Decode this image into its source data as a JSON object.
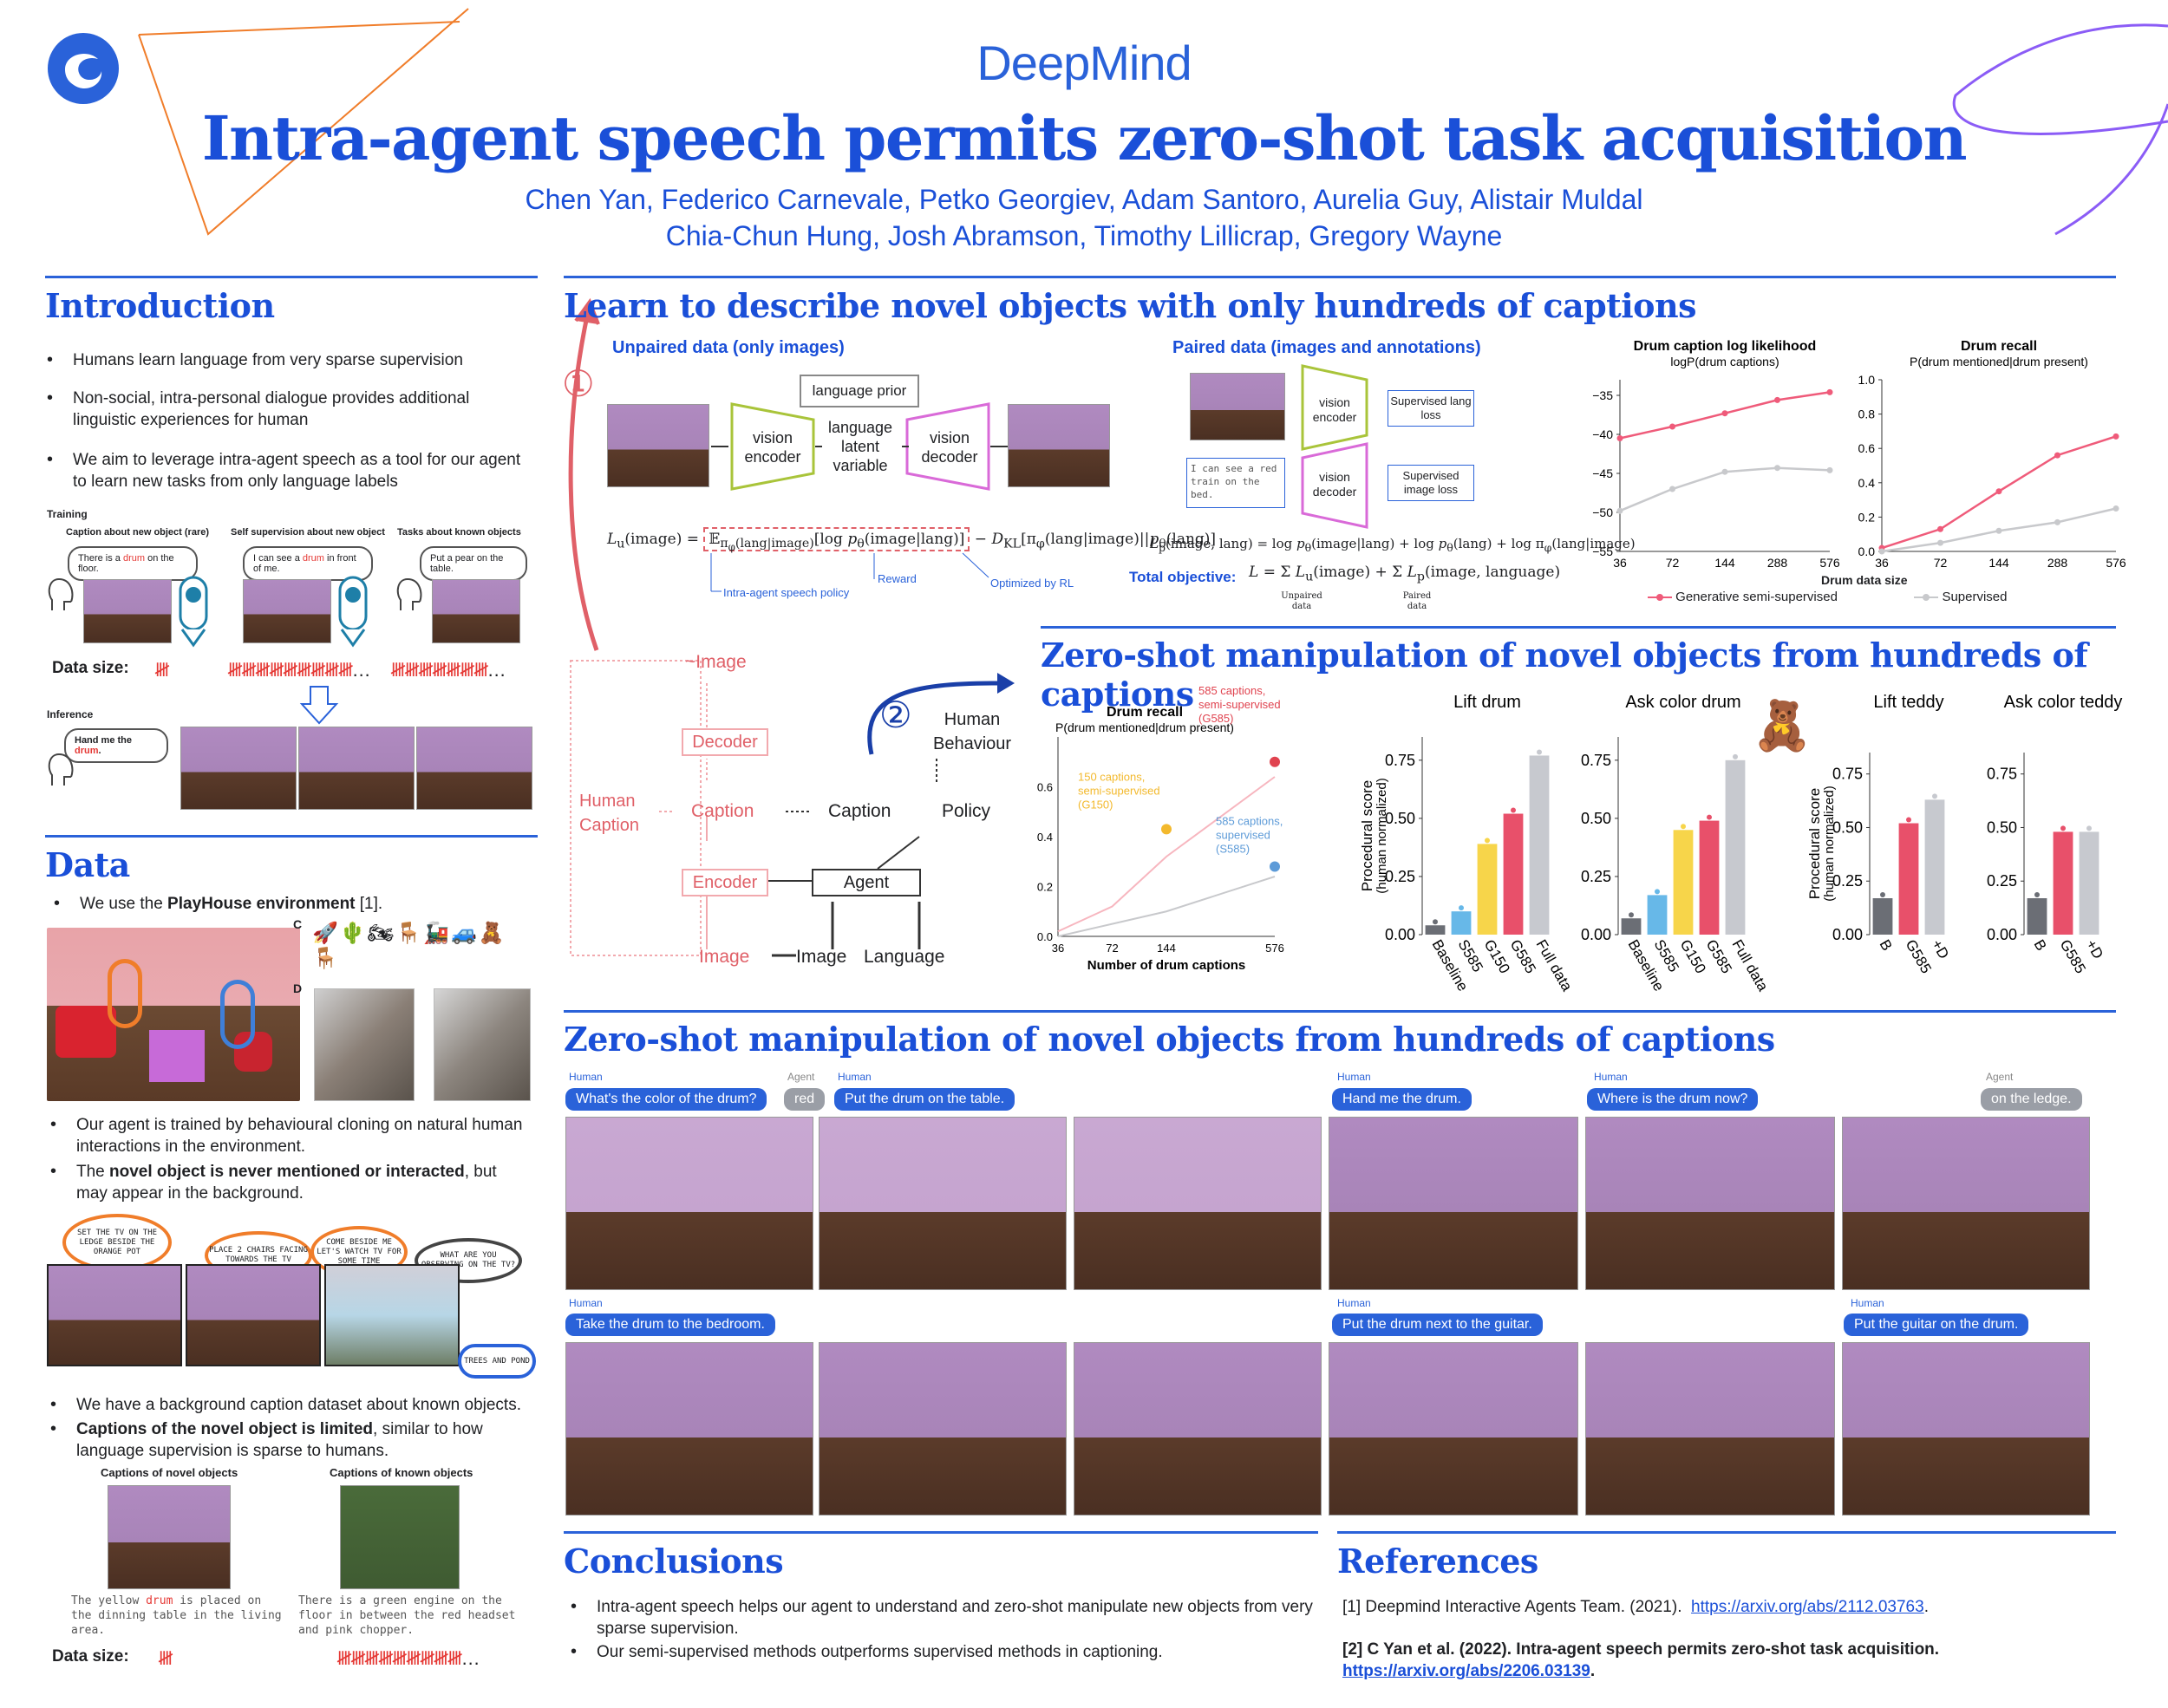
{
  "header": {
    "brand": "DeepMind",
    "title": "Intra-agent speech permits zero-shot task acquisition",
    "authors_line1": "Chen Yan, Federico Carnevale, Petko Georgiev, Adam Santoro, Aurelia Guy, Alistair Muldal",
    "authors_line2": "Chia-Chun Hung, Josh Abramson, Timothy Lillicrap, Gregory Wayne"
  },
  "intro": {
    "title": "Introduction",
    "bullets": [
      "Humans learn language from very sparse supervision",
      "Non-social, intra-personal dialogue provides additional linguistic experiences for human",
      "We aim to leverage intra-agent speech as a tool for our agent to learn new tasks from only language labels"
    ],
    "training_label": "Training",
    "col1_title": "Caption about new object (rare)",
    "col2_title": "Self supervision about new object",
    "col3_title": "Tasks about known objects",
    "bubble1_a": "There is a ",
    "bubble1_b": "drum",
    "bubble1_c": " on the floor.",
    "bubble2_a": "I can see a ",
    "bubble2_b": "drum",
    "bubble2_c": " in front of me.",
    "bubble3": "Put a pear on the table.",
    "data_size_label": "Data size:",
    "inference_label": "Inference",
    "inference_a": "Hand me the ",
    "inference_b": "drum",
    "inference_c": "."
  },
  "data_section": {
    "title": "Data",
    "bullet1_a": "We use the ",
    "bullet1_b": "PlayHouse environment",
    "bullet1_c": " [1].",
    "label_c": "C",
    "label_d": "D",
    "bullet2": "Our agent is trained by behavioural cloning on natural human interactions in the environment.",
    "bullet3_a": "The ",
    "bullet3_b": "novel object is never mentioned or interacted",
    "bullet3_c": ", but may appear in the background.",
    "speech1": "SET THE TV ON THE LEDGE BESIDE THE ORANGE POT",
    "speech2": "PLACE 2 CHAIRS FACING TOWARDS THE TV",
    "speech3": "COME BESIDE ME LET'S WATCH TV FOR SOME TIME",
    "speech4": "WHAT ARE YOU OBSERVING ON THE TV?",
    "speech5": "TREES AND POND",
    "bullet4": "We have a background caption dataset about known objects.",
    "bullet5_a": "Captions of the novel object is limited",
    "bullet5_b": ", similar to how language supervision is sparse to humans.",
    "cap_novel_title": "Captions of novel objects",
    "cap_known_title": "Captions of known objects",
    "cap_novel_a": "The yellow ",
    "cap_novel_b": "drum",
    "cap_novel_c": " is placed on the dinning table in the living area.",
    "cap_known": "There is a green engine on the floor in between the red headset and pink chopper.",
    "data_size_label": "Data size:"
  },
  "learn": {
    "title": "Learn to describe novel objects with only hundreds of captions",
    "unpaired_title": "Unpaired data (only images)",
    "paired_title": "Paired data (images and annotations)",
    "language_prior": "language prior",
    "vision_encoder": "vision encoder",
    "latent": "language latent variable",
    "vision_decoder": "vision decoder",
    "supervised_lang_loss": "Supervised lang loss",
    "supervised_image_loss": "Supervised image loss",
    "paired_caption": "I can see a red train on the bed.",
    "eq_lu": "Lu(image) = E π(lang|image) [log pθ(image|lang)] − D KL[πφ(lang|image) || pθ(lang)]",
    "eq_lp": "Lp(image, lang) = log pθ(image|lang) + log pθ(lang) + log πφ(lang|image)",
    "total_objective_label": "Total objective:",
    "total_objective_eq": "L = Σ Lu(image) + Σ Lp(image, language)",
    "unpaired_data_sub": "Unpaired data",
    "paired_data_sub": "Paired data",
    "reward_label": "Reward",
    "optimized_label": "Optimized by RL",
    "speech_policy_label": "Intra-agent speech policy",
    "circle1": "①",
    "circle2": "②"
  },
  "chart_data": [
    {
      "type": "line",
      "title": "Drum caption log likelihood",
      "subtitle": "logP(drum captions)",
      "x": [
        "36",
        "72",
        "144",
        "288",
        "576"
      ],
      "xlabel": "Drum data size",
      "ylim": [
        -55,
        -33
      ],
      "yticks": [
        "−35",
        "−40",
        "−45",
        "−50",
        "−55"
      ],
      "series": [
        {
          "name": "Generative semi-supervised",
          "color": "#ef5b7a",
          "values": [
            -40.5,
            -39.0,
            -37.3,
            -35.6,
            -34.6
          ]
        },
        {
          "name": "Supervised",
          "color": "#c8c9cc",
          "values": [
            -49.8,
            -47.0,
            -44.8,
            -44.3,
            -44.6
          ]
        }
      ],
      "legend": "bottom"
    },
    {
      "type": "line",
      "title": "Drum recall",
      "subtitle": "P(drum mentioned|drum present)",
      "x": [
        "36",
        "72",
        "144",
        "288",
        "576"
      ],
      "xlabel": "Drum data size",
      "ylim": [
        0.0,
        1.0
      ],
      "yticks": [
        "1.0",
        "0.8",
        "0.6",
        "0.4",
        "0.2",
        "0.0"
      ],
      "series": [
        {
          "name": "Generative semi-supervised",
          "color": "#ef5b7a",
          "values": [
            0.02,
            0.13,
            0.35,
            0.56,
            0.67
          ]
        },
        {
          "name": "Supervised",
          "color": "#c8c9cc",
          "values": [
            0.0,
            0.05,
            0.12,
            0.17,
            0.25
          ]
        }
      ]
    },
    {
      "type": "line",
      "title": "Drum recall",
      "subtitle": "P(drum mentioned|drum present)",
      "x": [
        "36",
        "72",
        "144",
        "576"
      ],
      "xlabel": "Number of drum captions",
      "ylim": [
        0.0,
        0.8
      ],
      "yticks": [
        "0.6",
        "0.4",
        "0.2",
        "0.0"
      ],
      "series": [
        {
          "name": "semi-supervised",
          "color": "#f7b6bf",
          "values": [
            0.02,
            0.12,
            0.32,
            0.64
          ]
        },
        {
          "name": "supervised",
          "color": "#c8c9cc",
          "values": [
            0.0,
            0.05,
            0.1,
            0.24
          ]
        }
      ],
      "annotations": [
        {
          "text": "150 captions, semi-supervised (G150)",
          "color": "#f3b92d",
          "x": "144",
          "y": 0.43
        },
        {
          "text": "585 captions, semi-supervised (G585)",
          "color": "#e0434f",
          "x": "576",
          "y": 0.7
        },
        {
          "text": "585 captions, supervised (S585)",
          "color": "#5d9bd8",
          "x": "576",
          "y": 0.28
        }
      ]
    },
    {
      "type": "bar",
      "title": "Lift drum",
      "ylabel": "Procedural score (human normalized)",
      "categories": [
        "Baseline",
        "S585",
        "G150",
        "G585",
        "Full data"
      ],
      "values": [
        0.04,
        0.1,
        0.39,
        0.52,
        0.77
      ],
      "colors": [
        "#6b6e75",
        "#67b8e8",
        "#f7d54a",
        "#e8506a",
        "#c7c9cf"
      ],
      "ylim": [
        0,
        0.85
      ],
      "yticks": [
        "0.75",
        "0.50",
        "0.25",
        "0.00"
      ]
    },
    {
      "type": "bar",
      "title": "Ask color drum",
      "categories": [
        "Baseline",
        "S585",
        "G150",
        "G585",
        "Full data"
      ],
      "values": [
        0.07,
        0.17,
        0.45,
        0.49,
        0.75
      ],
      "colors": [
        "#6b6e75",
        "#67b8e8",
        "#f7d54a",
        "#e8506a",
        "#c7c9cf"
      ],
      "ylim": [
        0,
        0.85
      ],
      "yticks": [
        "0.75",
        "0.50",
        "0.25",
        "0.00"
      ]
    },
    {
      "type": "bar",
      "title": "Lift teddy",
      "ylabel": "Procedural score (human normalized)",
      "categories": [
        "B",
        "G585",
        "+D"
      ],
      "values": [
        0.17,
        0.52,
        0.63
      ],
      "colors": [
        "#6b6e75",
        "#e8506a",
        "#c7c9cf"
      ],
      "ylim": [
        0,
        0.85
      ],
      "yticks": [
        "0.75",
        "0.50",
        "0.25",
        "0.00"
      ]
    },
    {
      "type": "bar",
      "title": "Ask color teddy",
      "categories": [
        "B",
        "G585",
        "+D"
      ],
      "values": [
        0.17,
        0.48,
        0.48
      ],
      "colors": [
        "#6b6e75",
        "#e8506a",
        "#c7c9cf"
      ],
      "ylim": [
        0,
        0.85
      ],
      "yticks": [
        "0.75",
        "0.50",
        "0.25",
        "0.00"
      ]
    }
  ],
  "zeroshot": {
    "title": "Zero-shot manipulation of novel objects from hundreds of captions",
    "title2": "Zero-shot manipulation of novel objects from hundreds of captions",
    "diagram": {
      "image_top": "~Image",
      "decoder": "Decoder",
      "human_caption": "Human Caption",
      "caption_pink": "Caption",
      "caption_black": "Caption",
      "encoder": "Encoder",
      "agent": "Agent",
      "image_pink": "Image",
      "image_black": "Image",
      "language": "Language",
      "policy": "Policy",
      "human_behaviour": "Human Behaviour"
    },
    "human_label": "Human",
    "agent_label": "Agent",
    "q1": "What's the color of the drum?",
    "a1": "red",
    "q2": "Put the drum on the table.",
    "q3": "Hand me the drum.",
    "q4": "Where is the drum now?",
    "a4": "on the ledge.",
    "q5": "Take the drum to the bedroom.",
    "q6": "Put the drum next to the guitar.",
    "q7": "Put the guitar on the drum."
  },
  "conclusions": {
    "title": "Conclusions",
    "bullets": [
      "Intra-agent speech helps our agent to understand and zero-shot manipulate new objects from very sparse supervision.",
      "Our semi-supervised methods outperforms supervised methods in captioning."
    ]
  },
  "references": {
    "title": "References",
    "ref1_text": "[1] Deepmind Interactive Agents Team. (2021).",
    "ref1_link": "https://arxiv.org/abs/2112.03763",
    "ref2_text": "[2] C Yan et al. (2022). Intra-agent speech permits zero-shot task acquisition.",
    "ref2_link": "https://arxiv.org/abs/2206.03139"
  }
}
